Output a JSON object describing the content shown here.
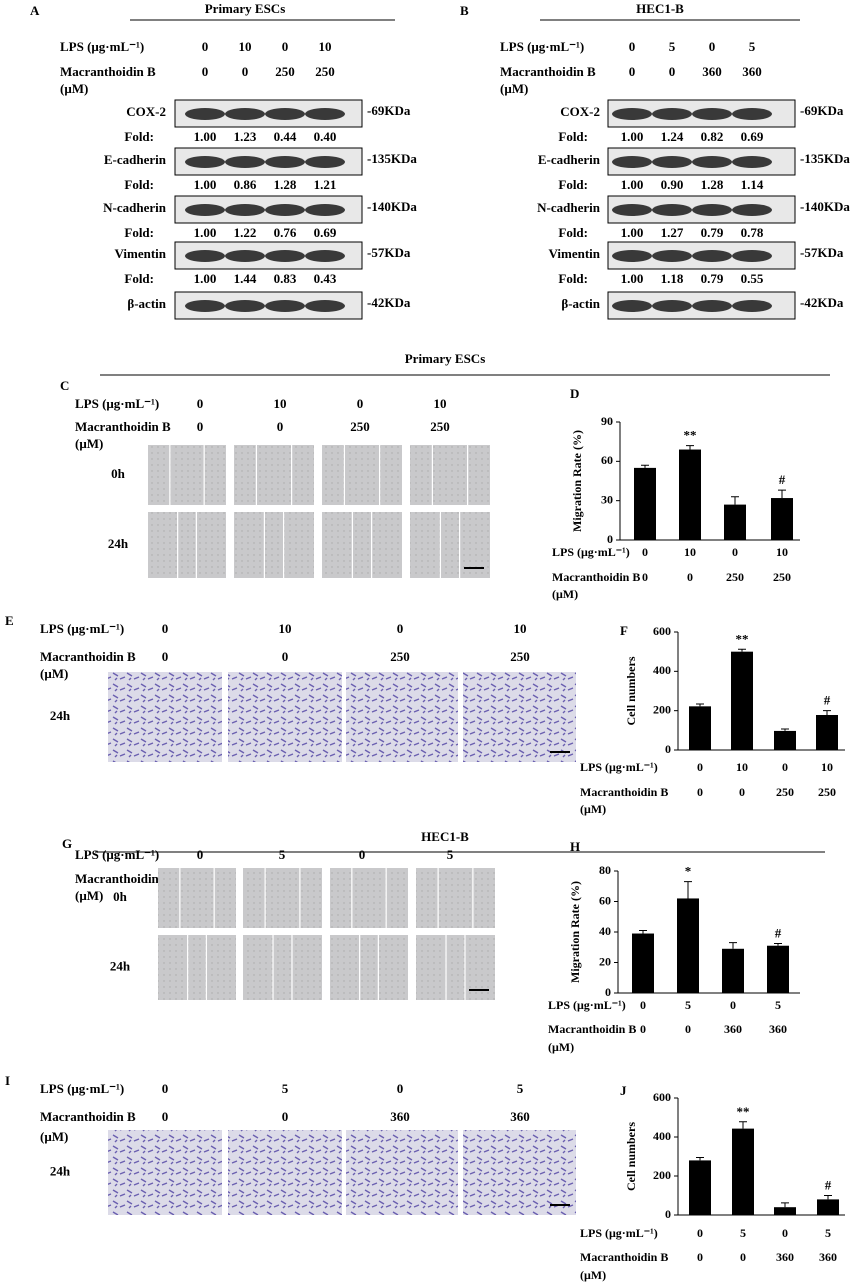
{
  "blots": [
    {
      "label": "A",
      "title": "Primary ESCs",
      "treatment": {
        "lps_label": "LPS (μg·mL⁻¹)",
        "lps": [
          0,
          10,
          0,
          10
        ],
        "mb_label": "Macranthoidin B",
        "mb_unit": "(μM)",
        "mb": [
          0,
          0,
          250,
          250
        ]
      },
      "rows": [
        {
          "name": "COX-2",
          "kda": "-69KDa",
          "fold_label": "Fold:",
          "folds": [
            "1.00",
            "1.23",
            "0.44",
            "0.40"
          ]
        },
        {
          "name": "E-cadherin",
          "kda": "-135KDa",
          "fold_label": "Fold:",
          "folds": [
            "1.00",
            "0.86",
            "1.28",
            "1.21"
          ]
        },
        {
          "name": "N-cadherin",
          "kda": "-140KDa",
          "fold_label": "Fold:",
          "folds": [
            "1.00",
            "1.22",
            "0.76",
            "0.69"
          ]
        },
        {
          "name": "Vimentin",
          "kda": "-57KDa",
          "fold_label": "Fold:",
          "folds": [
            "1.00",
            "1.44",
            "0.83",
            "0.43"
          ]
        },
        {
          "name": "β-actin",
          "kda": "-42KDa"
        }
      ]
    },
    {
      "label": "B",
      "title": "HEC1-B",
      "treatment": {
        "lps_label": "LPS (μg·mL⁻¹)",
        "lps": [
          0,
          5,
          0,
          5
        ],
        "mb_label": "Macranthoidin B",
        "mb_unit": "(μM)",
        "mb": [
          0,
          0,
          360,
          360
        ]
      },
      "rows": [
        {
          "name": "COX-2",
          "kda": "-69KDa",
          "fold_label": "Fold:",
          "folds": [
            "1.00",
            "1.24",
            "0.82",
            "0.69"
          ]
        },
        {
          "name": "E-cadherin",
          "kda": "-135KDa",
          "fold_label": "Fold:",
          "folds": [
            "1.00",
            "0.90",
            "1.28",
            "1.14"
          ]
        },
        {
          "name": "N-cadherin",
          "kda": "-140KDa",
          "fold_label": "Fold:",
          "folds": [
            "1.00",
            "1.27",
            "0.79",
            "0.78"
          ]
        },
        {
          "name": "Vimentin",
          "kda": "-57KDa",
          "fold_label": "Fold:",
          "folds": [
            "1.00",
            "1.18",
            "0.79",
            "0.55"
          ]
        },
        {
          "name": "β-actin",
          "kda": "-42KDa"
        }
      ]
    }
  ],
  "sections": [
    {
      "title": "Primary ESCs"
    },
    {
      "title": "HEC1-B"
    }
  ],
  "micrographs": [
    {
      "label": "C",
      "rows": [
        "0h",
        "24h"
      ],
      "treatment": {
        "lps_label": "LPS (μg·mL⁻¹)",
        "lps": [
          0,
          10,
          0,
          10
        ],
        "mb_label": "Macranthoidin B",
        "mb_unit": "(μM)",
        "mb": [
          0,
          0,
          250,
          250
        ]
      }
    },
    {
      "label": "E",
      "rows": [
        "24h"
      ],
      "treatment": {
        "lps_label": "LPS (μg·mL⁻¹)",
        "lps": [
          0,
          10,
          0,
          10
        ],
        "mb_label": "Macranthoidin B",
        "mb_unit": "(μM)",
        "mb": [
          0,
          0,
          250,
          250
        ]
      }
    },
    {
      "label": "G",
      "rows": [
        "0h",
        "24h"
      ],
      "treatment": {
        "lps_label": "LPS (μg·mL⁻¹)",
        "lps": [
          0,
          5,
          0,
          5
        ],
        "mb_label": "Macranthoidin B",
        "mb_unit": "(μM)",
        "mb": [
          0,
          0,
          360,
          360
        ]
      }
    },
    {
      "label": "I",
      "rows": [
        "24h"
      ],
      "treatment": {
        "lps_label": "LPS (μg·mL⁻¹)",
        "lps": [
          0,
          5,
          0,
          5
        ],
        "mb_label": "Macranthoidin B",
        "mb_unit": "(μM)",
        "mb": [
          0,
          0,
          360,
          360
        ]
      }
    }
  ],
  "chart_data": [
    {
      "type": "bar",
      "label": "D",
      "ylabel": "Migration Rate (%)",
      "ylim": [
        0,
        90
      ],
      "yticks": [
        0,
        30,
        60,
        90
      ],
      "series": [
        {
          "color": "#000000",
          "values": [
            55,
            69,
            27,
            32
          ],
          "errors": [
            2,
            3,
            6,
            6
          ]
        }
      ],
      "annotations": [
        null,
        "**",
        null,
        "#"
      ],
      "treatment": {
        "lps_label": "LPS (μg·mL⁻¹)",
        "lps": [
          0,
          10,
          0,
          10
        ],
        "mb_label": "Macranthoidin B",
        "mb_unit": "(μM)",
        "mb": [
          0,
          0,
          250,
          250
        ]
      }
    },
    {
      "type": "bar",
      "label": "F",
      "ylabel": "Cell numbers",
      "ylim": [
        0,
        600
      ],
      "yticks": [
        0,
        200,
        400,
        600
      ],
      "series": [
        {
          "color": "#000000",
          "values": [
            222,
            500,
            97,
            178
          ],
          "errors": [
            12,
            12,
            10,
            22
          ]
        }
      ],
      "annotations": [
        null,
        "**",
        null,
        "#"
      ],
      "treatment": {
        "lps_label": "LPS (μg·mL⁻¹)",
        "lps": [
          0,
          10,
          0,
          10
        ],
        "mb_label": "Macranthoidin B",
        "mb_unit": "(μM)",
        "mb": [
          0,
          0,
          250,
          250
        ]
      }
    },
    {
      "type": "bar",
      "label": "H",
      "ylabel": "Migration Rate (%)",
      "ylim": [
        0,
        80
      ],
      "yticks": [
        0,
        20,
        40,
        60,
        80
      ],
      "series": [
        {
          "color": "#000000",
          "values": [
            39,
            62,
            29,
            31
          ],
          "errors": [
            2,
            11,
            4,
            1.5
          ]
        }
      ],
      "annotations": [
        null,
        "*",
        null,
        "#"
      ],
      "treatment": {
        "lps_label": "LPS (μg·mL⁻¹)",
        "lps": [
          0,
          5,
          0,
          5
        ],
        "mb_label": "Macranthoidin B",
        "mb_unit": "(μM)",
        "mb": [
          0,
          0,
          360,
          360
        ]
      }
    },
    {
      "type": "bar",
      "label": "J",
      "ylabel": "Cell numbers",
      "ylim": [
        0,
        600
      ],
      "yticks": [
        0,
        200,
        400,
        600
      ],
      "series": [
        {
          "color": "#000000",
          "values": [
            280,
            443,
            40,
            80
          ],
          "errors": [
            15,
            35,
            22,
            20
          ]
        }
      ],
      "annotations": [
        null,
        "**",
        null,
        "#"
      ],
      "treatment": {
        "lps_label": "LPS (μg·mL⁻¹)",
        "lps": [
          0,
          5,
          0,
          5
        ],
        "mb_label": "Macranthoidin B",
        "mb_unit": "(μM)",
        "mb": [
          0,
          0,
          360,
          360
        ]
      }
    }
  ]
}
